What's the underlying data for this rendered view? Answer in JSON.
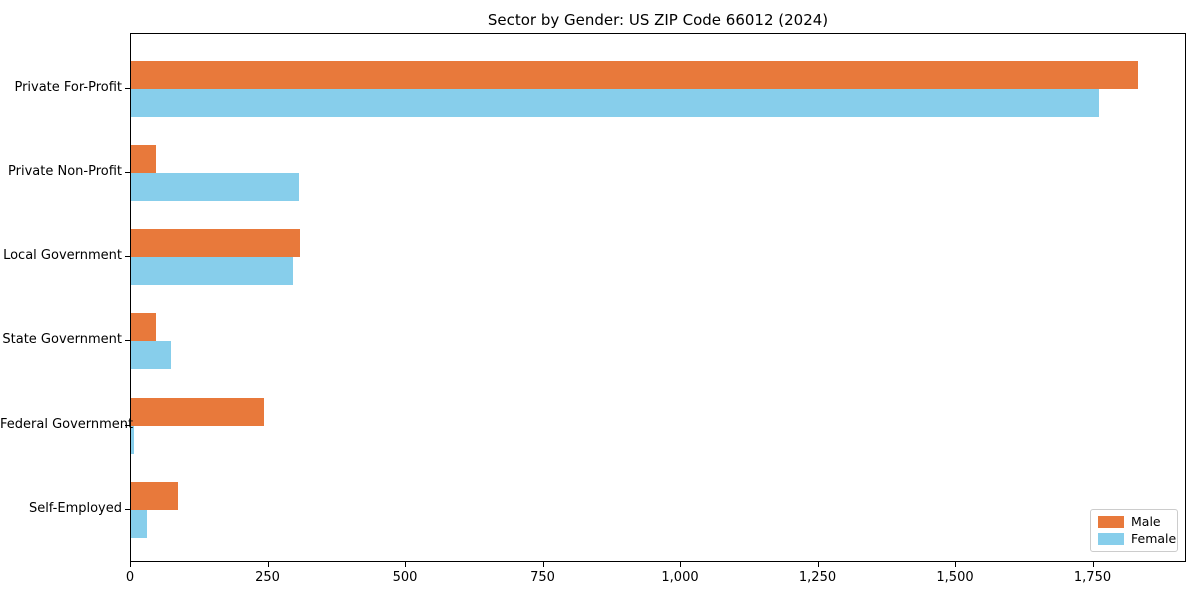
{
  "figure": {
    "background": "#ffffff"
  },
  "chart_data": {
    "type": "bar",
    "orientation": "horizontal",
    "title": "Sector by Gender: US ZIP Code 66012 (2024)",
    "categories": [
      "Private For-Profit",
      "Private Non-Profit",
      "Local Government",
      "State Government",
      "Federal Government",
      "Self-Employed"
    ],
    "series": [
      {
        "name": "Male",
        "color": "#e8793b",
        "values": [
          1830,
          45,
          307,
          46,
          242,
          85
        ]
      },
      {
        "name": "Female",
        "color": "#87ceeb",
        "values": [
          1760,
          305,
          295,
          72,
          5,
          29
        ]
      }
    ],
    "xlabel": "",
    "ylabel": "",
    "xlim": [
      0,
      1920
    ],
    "x_ticks": [
      0,
      250,
      500,
      750,
      1000,
      1250,
      1500,
      1750
    ],
    "x_tick_labels": [
      "0",
      "250",
      "500",
      "750",
      "1,000",
      "1,250",
      "1,500",
      "1,750"
    ],
    "grid": false,
    "legend": {
      "position": "lower right",
      "entries": [
        "Male",
        "Female"
      ]
    }
  }
}
